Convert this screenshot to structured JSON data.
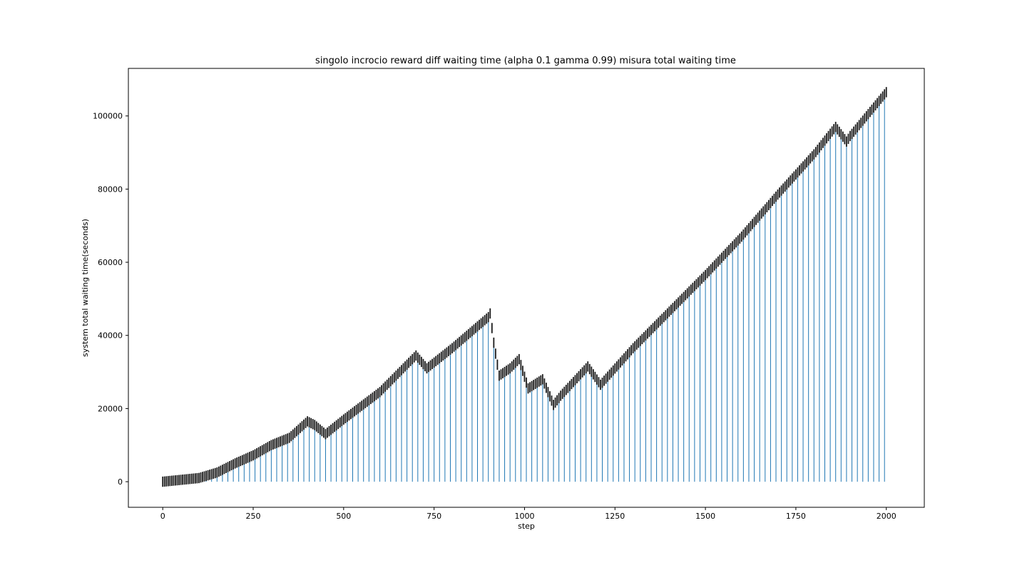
{
  "chart_data": {
    "type": "bar",
    "title": "singolo incrocio reward diff waiting time (alpha 0.1 gamma 0.99) misura total waiting time",
    "xlabel": "step",
    "ylabel": "system total waiting time(seconds)",
    "xlim": [
      -95,
      2105
    ],
    "ylim": [
      -7000,
      113000
    ],
    "xticks": [
      0,
      250,
      500,
      750,
      1000,
      1250,
      1500,
      1750,
      2000
    ],
    "xtick_labels": [
      "0",
      "250",
      "500",
      "750",
      "1000",
      "1250",
      "1500",
      "1750",
      "2000"
    ],
    "yticks": [
      0,
      20000,
      40000,
      60000,
      80000,
      100000
    ],
    "ytick_labels": [
      "0",
      "20000",
      "40000",
      "60000",
      "80000",
      "100000"
    ],
    "grid": false,
    "series_color": "#1f77b4",
    "error_color": "#1a1a1a",
    "bar_step": 5,
    "error_halfwidth": 1400,
    "trend_points": [
      [
        0,
        0
      ],
      [
        100,
        1000
      ],
      [
        150,
        2500
      ],
      [
        200,
        5000
      ],
      [
        250,
        7200
      ],
      [
        300,
        10000
      ],
      [
        350,
        12000
      ],
      [
        400,
        16500
      ],
      [
        420,
        15500
      ],
      [
        450,
        13000
      ],
      [
        500,
        17000
      ],
      [
        600,
        24500
      ],
      [
        700,
        34500
      ],
      [
        730,
        31000
      ],
      [
        800,
        36500
      ],
      [
        900,
        45000
      ],
      [
        905,
        46000
      ],
      [
        915,
        38000
      ],
      [
        930,
        29000
      ],
      [
        960,
        31000
      ],
      [
        985,
        33500
      ],
      [
        1010,
        25500
      ],
      [
        1050,
        28000
      ],
      [
        1080,
        21000
      ],
      [
        1100,
        23500
      ],
      [
        1175,
        31500
      ],
      [
        1210,
        26500
      ],
      [
        1300,
        36500
      ],
      [
        1400,
        46500
      ],
      [
        1500,
        56500
      ],
      [
        1600,
        67000
      ],
      [
        1700,
        78500
      ],
      [
        1800,
        89500
      ],
      [
        1860,
        97000
      ],
      [
        1890,
        93000
      ],
      [
        1900,
        94500
      ],
      [
        2000,
        106500
      ]
    ]
  }
}
